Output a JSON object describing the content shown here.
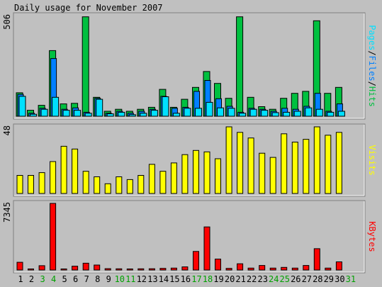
{
  "colors": {
    "hits": "#00c040",
    "files": "#0080ff",
    "pages": "#00e0ff",
    "visits": "#ffff00",
    "kbytes": "#ff0000",
    "weekend": "#00a000",
    "text": "#000000"
  },
  "chart_data": {
    "type": "bar",
    "title": "Daily usage for November 2007",
    "days": [
      "1",
      "2",
      "3",
      "4",
      "5",
      "6",
      "7",
      "8",
      "9",
      "10",
      "11",
      "12",
      "13",
      "14",
      "15",
      "16",
      "17",
      "18",
      "19",
      "20",
      "21",
      "22",
      "23",
      "24",
      "25",
      "26",
      "27",
      "28",
      "29",
      "30",
      "31"
    ],
    "weekend_days": [
      "3",
      "4",
      "10",
      "11",
      "17",
      "18",
      "24",
      "25",
      "31"
    ],
    "panels": [
      {
        "id": "hits_files_pages",
        "max_label": "506",
        "ylim": [
          0,
          506
        ],
        "legend": [
          {
            "text": "Pages",
            "color": "#00e0ff"
          },
          {
            "text": "/",
            "color": "#000000"
          },
          {
            "text": "Files",
            "color": "#0080ff"
          },
          {
            "text": "/",
            "color": "#000000"
          },
          {
            "text": "Hits",
            "color": "#00c040"
          }
        ],
        "series": [
          {
            "name": "Hits",
            "color": "#00c040",
            "values": [
              118,
              30,
              55,
              330,
              62,
              65,
              500,
              95,
              25,
              35,
              25,
              35,
              45,
              135,
              45,
              85,
              145,
              225,
              165,
              90,
              500,
              95,
              48,
              35,
              90,
              115,
              125,
              480,
              115,
              145,
              0
            ]
          },
          {
            "name": "Files",
            "color": "#0080ff",
            "values": [
              110,
              15,
              40,
              290,
              35,
              42,
              20,
              90,
              15,
              25,
              15,
              25,
              35,
              100,
              40,
              45,
              125,
              180,
              88,
              50,
              20,
              40,
              35,
              25,
              40,
              35,
              50,
              115,
              25,
              62,
              0
            ]
          },
          {
            "name": "Pages",
            "color": "#00e0ff",
            "values": [
              100,
              10,
              35,
              95,
              30,
              30,
              15,
              85,
              12,
              20,
              8,
              15,
              30,
              98,
              15,
              40,
              40,
              70,
              42,
              40,
              15,
              35,
              30,
              18,
              20,
              25,
              42,
              35,
              20,
              25,
              0
            ]
          }
        ]
      },
      {
        "id": "visits",
        "max_label": "48",
        "ylim": [
          0,
          48
        ],
        "legend": [
          {
            "text": "Visits",
            "color": "#ffff00"
          }
        ],
        "series": [
          {
            "name": "Visits",
            "color": "#ffff00",
            "values": [
              13,
              13,
              15,
              23,
              34,
              32,
              16,
              12,
              7,
              12,
              10,
              13,
              21,
              16,
              22,
              28,
              31,
              30,
              25,
              48,
              44,
              40,
              29,
              26,
              43,
              37,
              39,
              48,
              42,
              44,
              0
            ]
          }
        ]
      },
      {
        "id": "kbytes",
        "max_label": "7345",
        "ylim": [
          0,
          7345
        ],
        "legend": [
          {
            "text": "KBytes",
            "color": "#ff0000"
          }
        ],
        "series": [
          {
            "name": "KBytes",
            "color": "#ff0000",
            "values": [
              850,
              120,
              480,
              7345,
              110,
              420,
              750,
              550,
              150,
              130,
              110,
              130,
              140,
              180,
              210,
              340,
              2050,
              4750,
              1200,
              180,
              690,
              210,
              500,
              210,
              290,
              210,
              500,
              2350,
              210,
              900,
              0
            ]
          }
        ]
      }
    ]
  }
}
